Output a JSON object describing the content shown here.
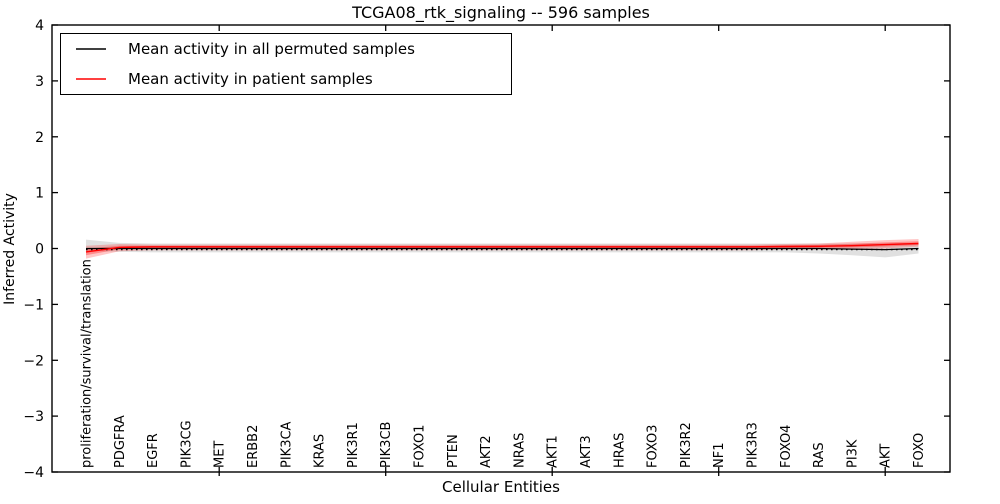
{
  "figure": {
    "title": "TCGA08_rtk_signaling -- 596 samples",
    "xlabel": "Cellular Entities",
    "ylabel": "Inferred Activity"
  },
  "legend": {
    "position": "upper left",
    "items": [
      {
        "label": "Mean activity in all permuted samples",
        "color": "#000000"
      },
      {
        "label": "Mean activity in patient samples",
        "color": "#ff0000"
      }
    ]
  },
  "chart_data": {
    "type": "line",
    "title": "TCGA08_rtk_signaling -- 596 samples",
    "xlabel": "Cellular Entities",
    "ylabel": "Inferred Activity",
    "ylim": [
      -4,
      4
    ],
    "yticks": [
      4,
      3,
      2,
      1,
      0,
      -1,
      -2,
      -3,
      -4
    ],
    "grid": false,
    "legend_position": "upper left",
    "x_major_tick_indices": [
      4,
      9,
      14,
      19,
      24
    ],
    "categories": [
      "proliferation/survival/translation",
      "PDGFRA",
      "EGFR",
      "PIK3CG",
      "MET",
      "ERBB2",
      "PIK3CA",
      "KRAS",
      "PIK3R1",
      "PIK3CB",
      "FOXO1",
      "PTEN",
      "AKT2",
      "NRAS",
      "AKT1",
      "AKT3",
      "HRAS",
      "FOXO3",
      "PIK3R2",
      "NF1",
      "PIK3R3",
      "FOXO4",
      "RAS",
      "PI3K",
      "AKT",
      "FOXO"
    ],
    "series": [
      {
        "name": "Mean activity in all permuted samples",
        "color": "#000000",
        "band_color": "rgba(0,0,0,0.12)",
        "values": [
          0,
          0,
          0,
          0,
          0,
          0,
          0,
          0,
          0,
          0,
          0,
          0,
          0,
          0,
          0,
          0,
          0,
          0,
          0,
          0,
          0,
          0,
          0,
          -0.01,
          -0.02,
          0
        ],
        "band_upper": [
          0.16,
          0.1,
          0.09,
          0.09,
          0.09,
          0.09,
          0.09,
          0.09,
          0.09,
          0.09,
          0.09,
          0.09,
          0.09,
          0.09,
          0.09,
          0.09,
          0.09,
          0.09,
          0.09,
          0.09,
          0.09,
          0.09,
          0.09,
          0.09,
          0.09,
          0.1
        ],
        "band_lower": [
          -0.04,
          -0.06,
          -0.07,
          -0.07,
          -0.07,
          -0.07,
          -0.07,
          -0.07,
          -0.07,
          -0.07,
          -0.07,
          -0.07,
          -0.07,
          -0.07,
          -0.07,
          -0.07,
          -0.07,
          -0.07,
          -0.07,
          -0.07,
          -0.07,
          -0.07,
          -0.09,
          -0.12,
          -0.16,
          -0.09
        ]
      },
      {
        "name": "Mean activity in patient samples",
        "color": "#ff0000",
        "band_color": "rgba(255,0,0,0.22)",
        "values": [
          -0.06,
          0.02,
          0.03,
          0.03,
          0.03,
          0.03,
          0.03,
          0.03,
          0.03,
          0.03,
          0.03,
          0.03,
          0.03,
          0.03,
          0.03,
          0.03,
          0.03,
          0.03,
          0.03,
          0.03,
          0.03,
          0.035,
          0.04,
          0.05,
          0.07,
          0.09
        ],
        "band_upper": [
          0.05,
          0.08,
          0.07,
          0.07,
          0.07,
          0.07,
          0.07,
          0.07,
          0.07,
          0.07,
          0.07,
          0.07,
          0.07,
          0.07,
          0.07,
          0.07,
          0.07,
          0.07,
          0.07,
          0.07,
          0.07,
          0.08,
          0.09,
          0.12,
          0.15,
          0.17
        ],
        "band_lower": [
          -0.18,
          -0.05,
          -0.03,
          -0.03,
          -0.03,
          -0.03,
          -0.03,
          -0.03,
          -0.03,
          -0.03,
          -0.03,
          -0.03,
          -0.03,
          -0.03,
          -0.03,
          -0.03,
          -0.03,
          -0.03,
          -0.03,
          -0.03,
          -0.03,
          -0.02,
          -0.02,
          -0.01,
          0.0,
          0.03
        ]
      }
    ],
    "zero_reference": {
      "style": "dotted",
      "color": "#000000",
      "value": -0.02
    }
  }
}
